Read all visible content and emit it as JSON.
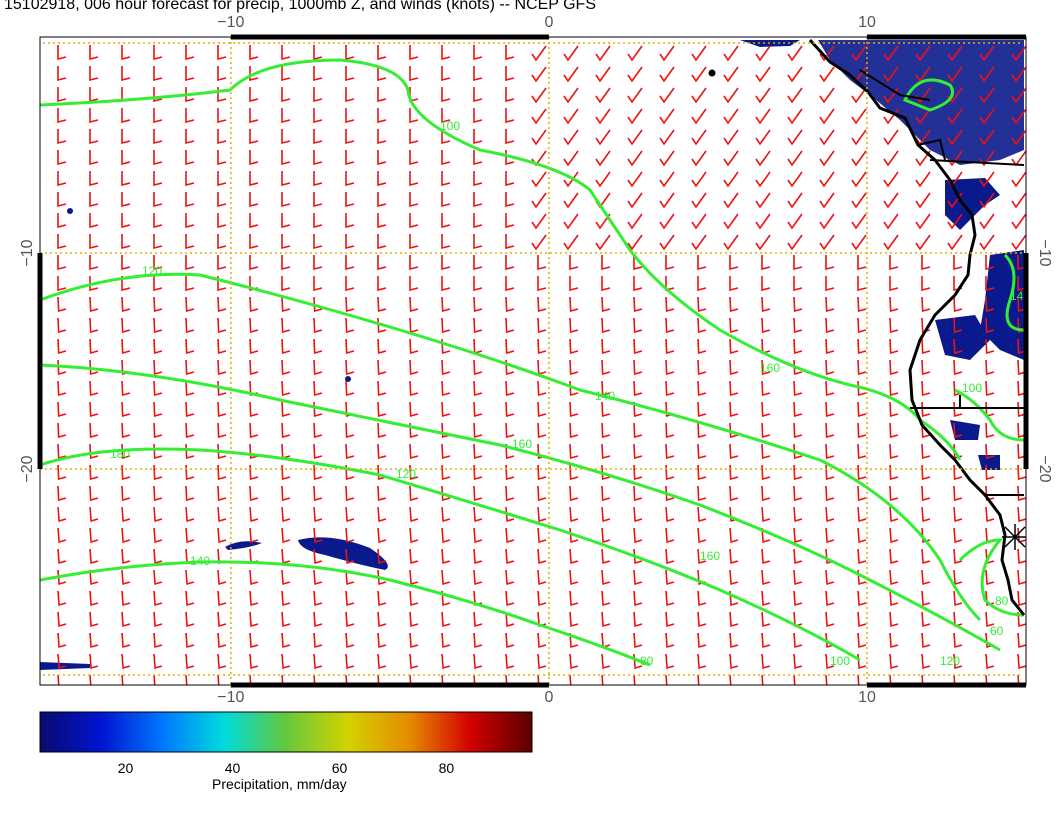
{
  "title": "15102918, 006 hour forecast for precip, 1000mb Z, and winds (knots) -- NCEP GFS",
  "map": {
    "lon_range": [
      -16,
      15
    ],
    "lat_range": [
      -30,
      0
    ],
    "lon_ticks": [
      -10,
      0,
      10
    ],
    "lat_ticks": [
      -10,
      -20
    ],
    "grid": true,
    "grid_color": "#ddb000",
    "contour_color": "#33ee33",
    "wind_barb_color": "#ee1111",
    "precip_color": "#0a1a8c",
    "coastline_color": "#000000",
    "contour_labels": [
      "100",
      "120",
      "140",
      "160",
      "180",
      "120",
      "140",
      "160",
      "100",
      "80",
      "60",
      "80",
      "100",
      "120",
      "140",
      "160"
    ]
  },
  "colorbar": {
    "label": "Precipitation, mm/day",
    "ticks": [
      20,
      40,
      60,
      80
    ],
    "range": [
      4,
      96
    ],
    "colors": [
      "#0a0a6e",
      "#0014d2",
      "#0078ff",
      "#00dcdc",
      "#64c83c",
      "#d2d200",
      "#e68c00",
      "#d20000",
      "#5a0000"
    ]
  }
}
